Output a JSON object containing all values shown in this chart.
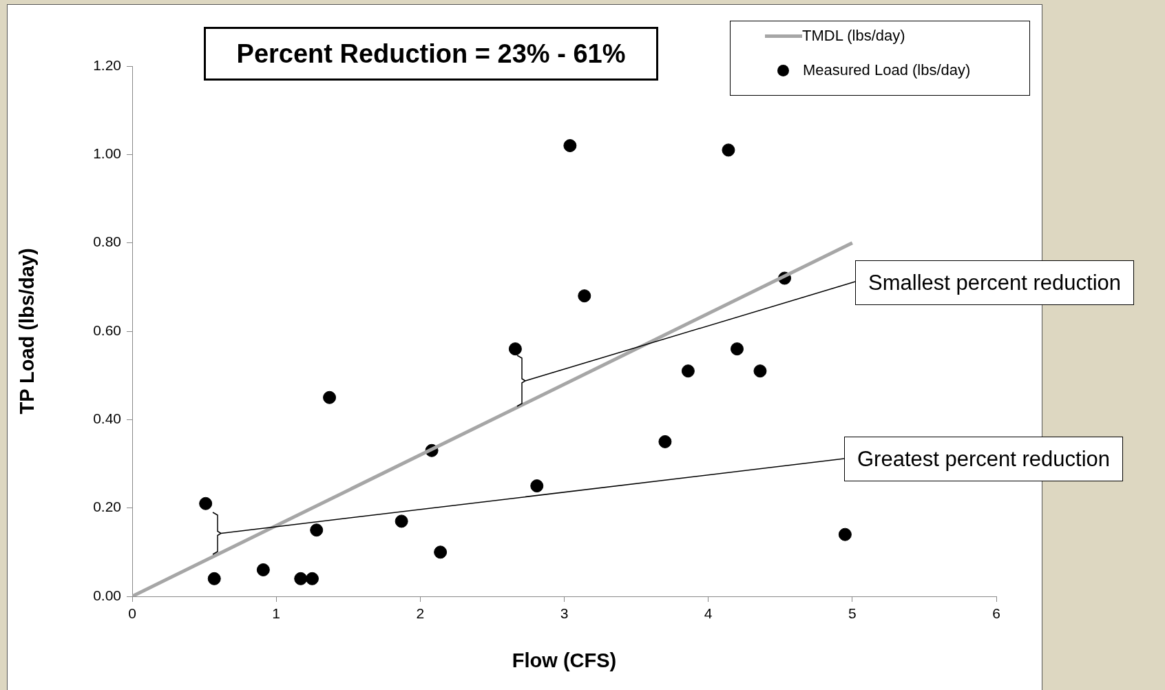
{
  "chart_data": {
    "type": "scatter",
    "title": "Percent Reduction = 23% - 61%",
    "xlabel": "Flow (CFS)",
    "ylabel": "TP Load (lbs/day)",
    "xlim": [
      0,
      6
    ],
    "xticks": [
      0,
      1,
      2,
      3,
      4,
      5,
      6
    ],
    "ylim": [
      0,
      1.2
    ],
    "yticks": [
      {
        "value": 0,
        "label": "0.00"
      },
      {
        "value": 0.2,
        "label": "0.20"
      },
      {
        "value": 0.4,
        "label": "0.40"
      },
      {
        "value": 0.6,
        "label": "0.60"
      },
      {
        "value": 0.8,
        "label": "0.80"
      },
      {
        "value": 1,
        "label": "1.00"
      },
      {
        "value": 1.2,
        "label": "1.20"
      }
    ],
    "grid": false,
    "legend": "top right",
    "series": [
      {
        "name": "TMDL (lbs/day)",
        "type": "line",
        "color": "#a6a6a6",
        "marker": "none",
        "x": [
          0,
          5
        ],
        "values": [
          0,
          0.8
        ]
      },
      {
        "name": "Measured Load (lbs/day)",
        "color": "#000000",
        "marker": "circle",
        "x": [
          0.51,
          0.57,
          0.91,
          1.17,
          1.25,
          1.28,
          1.37,
          1.87,
          2.08,
          2.14,
          2.66,
          2.81,
          3.04,
          3.14,
          3.7,
          3.86,
          4.14,
          4.2,
          4.36,
          4.53,
          4.95
        ],
        "values": [
          0.21,
          0.04,
          0.06,
          0.04,
          0.04,
          0.15,
          0.45,
          0.17,
          0.33,
          0.1,
          0.56,
          0.25,
          1.02,
          0.68,
          0.35,
          0.51,
          1.01,
          0.56,
          0.51,
          0.72,
          0.14
        ]
      }
    ],
    "annotations": [
      "Smallest percent reduction",
      "Greatest percent reduction"
    ]
  }
}
